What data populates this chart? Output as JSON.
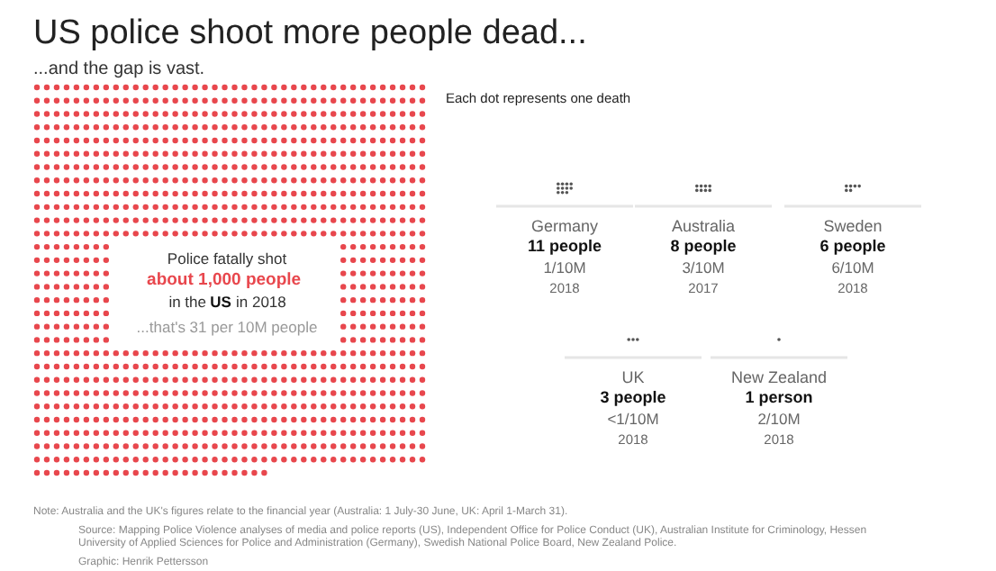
{
  "chart_data": {
    "type": "other",
    "title": "US police shoot more people dead...",
    "subtitle": "...and the gap is vast.",
    "categories": [
      "US",
      "Germany",
      "Australia",
      "Sweden",
      "UK",
      "New Zealand"
    ],
    "values": [
      1000,
      11,
      8,
      6,
      3,
      1
    ],
    "colors": [
      "#e8474d",
      "#555555",
      "#555555",
      "#555555",
      "#555555",
      "#555555"
    ],
    "value_labels": [
      "about 1,000 people",
      "11 people",
      "8 people",
      "6 people",
      "3 people",
      "1 person"
    ],
    "annotations": [
      "Police fatally shot",
      "in the",
      "in 2018",
      "...that's 31 per 10M people",
      "Each dot represents one death",
      "Note: Australia and the UK's figures relate to the financial year (Australia: 1 July-30 June, UK: April 1-March 31).",
      "Source: Mapping Police Violence analyses of media and police reports (US), Independent Office for Police Conduct (UK), Australian Institute for Criminology, Hessen University of Applied Sciences for Police and Administration (Germany), Swedish National Police Board, New Zealand Police.",
      "Graphic: Henrik Pettersson",
      {
        "text": "1/10M",
        "x": "Germany"
      },
      {
        "text": "2018",
        "x": "Germany"
      },
      {
        "text": "3/10M",
        "x": "Australia"
      },
      {
        "text": "2017",
        "x": "Australia"
      },
      {
        "text": "6/10M",
        "x": "Sweden"
      },
      {
        "text": "2018",
        "x": "Sweden"
      },
      {
        "text": "<1/10M",
        "x": "UK"
      },
      {
        "text": "2018",
        "x": "UK"
      },
      {
        "text": "2/10M",
        "x": "New Zealand"
      },
      {
        "text": "2018",
        "x": "New Zealand"
      }
    ]
  }
}
